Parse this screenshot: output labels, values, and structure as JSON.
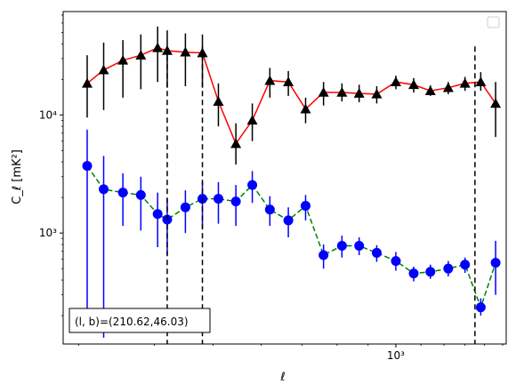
{
  "chart_data": {
    "type": "scatter",
    "xlabel": "ℓ",
    "ylabel": "C_ℓ  [mK²]",
    "xscale": "log",
    "yscale": "log",
    "xlim": [
      283,
      1520
    ],
    "ylim": [
      115,
      75000
    ],
    "x_ticks": [
      {
        "value": 1000,
        "label": "10³"
      }
    ],
    "y_ticks": [
      {
        "value": 1000,
        "label": "10³"
      },
      {
        "value": 10000,
        "label": "10⁴"
      }
    ],
    "grid": false,
    "legend": "top-right (empty)",
    "annotation": "(l, b)=(210.62,46.03)",
    "vlines": [
      420,
      480,
      1350
    ],
    "series": [
      {
        "marker": "triangle",
        "marker_color": "#000000",
        "line_color": "#ff0000",
        "line_style": "solid",
        "points": [
          {
            "x": 310,
            "y": 18500,
            "lo": 9500,
            "hi": 32000
          },
          {
            "x": 330,
            "y": 24000,
            "lo": 11000,
            "hi": 41000
          },
          {
            "x": 355,
            "y": 29000,
            "lo": 14000,
            "hi": 43000
          },
          {
            "x": 380,
            "y": 32000,
            "lo": 16500,
            "hi": 48000
          },
          {
            "x": 405,
            "y": 37000,
            "lo": 19000,
            "hi": 56000
          },
          {
            "x": 420,
            "y": 35000,
            "lo": 17000,
            "hi": 52000
          },
          {
            "x": 450,
            "y": 34000,
            "lo": 17500,
            "hi": 49000
          },
          {
            "x": 480,
            "y": 33500,
            "lo": 17000,
            "hi": 48000
          },
          {
            "x": 510,
            "y": 13000,
            "lo": 8000,
            "hi": 18500
          },
          {
            "x": 545,
            "y": 5700,
            "lo": 3800,
            "hi": 8500
          },
          {
            "x": 580,
            "y": 9000,
            "lo": 6000,
            "hi": 12500
          },
          {
            "x": 620,
            "y": 19500,
            "lo": 14000,
            "hi": 25000
          },
          {
            "x": 665,
            "y": 19000,
            "lo": 14500,
            "hi": 23500
          },
          {
            "x": 710,
            "y": 11200,
            "lo": 8500,
            "hi": 14000
          },
          {
            "x": 760,
            "y": 15500,
            "lo": 12000,
            "hi": 19000
          },
          {
            "x": 815,
            "y": 15500,
            "lo": 13000,
            "hi": 18500
          },
          {
            "x": 870,
            "y": 15200,
            "lo": 12800,
            "hi": 18000
          },
          {
            "x": 930,
            "y": 15000,
            "lo": 12500,
            "hi": 17500
          },
          {
            "x": 1000,
            "y": 19000,
            "lo": 16500,
            "hi": 21500
          },
          {
            "x": 1070,
            "y": 18000,
            "lo": 15500,
            "hi": 20500
          },
          {
            "x": 1140,
            "y": 16000,
            "lo": 14500,
            "hi": 17800
          },
          {
            "x": 1220,
            "y": 17000,
            "lo": 15000,
            "hi": 19000
          },
          {
            "x": 1300,
            "y": 18500,
            "lo": 16000,
            "hi": 21000
          },
          {
            "x": 1380,
            "y": 19000,
            "lo": 16000,
            "hi": 23000
          },
          {
            "x": 1460,
            "y": 12500,
            "lo": 6500,
            "hi": 19000
          }
        ]
      },
      {
        "marker": "circle",
        "marker_color": "#0000ff",
        "line_color": "#008000",
        "line_style": "dashed",
        "points": [
          {
            "x": 310,
            "y": 3700,
            "lo": 150,
            "hi": 7500
          },
          {
            "x": 330,
            "y": 2350,
            "lo": 130,
            "hi": 4500
          },
          {
            "x": 355,
            "y": 2200,
            "lo": 1150,
            "hi": 3200
          },
          {
            "x": 380,
            "y": 2100,
            "lo": 1050,
            "hi": 3000
          },
          {
            "x": 405,
            "y": 1450,
            "lo": 760,
            "hi": 2200
          },
          {
            "x": 420,
            "y": 1300,
            "lo": 650,
            "hi": 1950
          },
          {
            "x": 450,
            "y": 1650,
            "lo": 1000,
            "hi": 2300
          },
          {
            "x": 480,
            "y": 1950,
            "lo": 1100,
            "hi": 2700
          },
          {
            "x": 510,
            "y": 1950,
            "lo": 1200,
            "hi": 2700
          },
          {
            "x": 545,
            "y": 1850,
            "lo": 1150,
            "hi": 2550
          },
          {
            "x": 580,
            "y": 2550,
            "lo": 1800,
            "hi": 3350
          },
          {
            "x": 620,
            "y": 1580,
            "lo": 1150,
            "hi": 2050
          },
          {
            "x": 665,
            "y": 1280,
            "lo": 920,
            "hi": 1650
          },
          {
            "x": 710,
            "y": 1700,
            "lo": 1280,
            "hi": 2100
          },
          {
            "x": 760,
            "y": 650,
            "lo": 500,
            "hi": 800
          },
          {
            "x": 815,
            "y": 780,
            "lo": 620,
            "hi": 950
          },
          {
            "x": 870,
            "y": 780,
            "lo": 650,
            "hi": 920
          },
          {
            "x": 930,
            "y": 680,
            "lo": 570,
            "hi": 790
          },
          {
            "x": 1000,
            "y": 580,
            "lo": 480,
            "hi": 690
          },
          {
            "x": 1070,
            "y": 455,
            "lo": 390,
            "hi": 520
          },
          {
            "x": 1140,
            "y": 470,
            "lo": 410,
            "hi": 540
          },
          {
            "x": 1220,
            "y": 500,
            "lo": 430,
            "hi": 580
          },
          {
            "x": 1300,
            "y": 540,
            "lo": 460,
            "hi": 620
          },
          {
            "x": 1380,
            "y": 235,
            "lo": 200,
            "hi": 280
          },
          {
            "x": 1460,
            "y": 560,
            "lo": 300,
            "hi": 860
          }
        ]
      }
    ]
  }
}
